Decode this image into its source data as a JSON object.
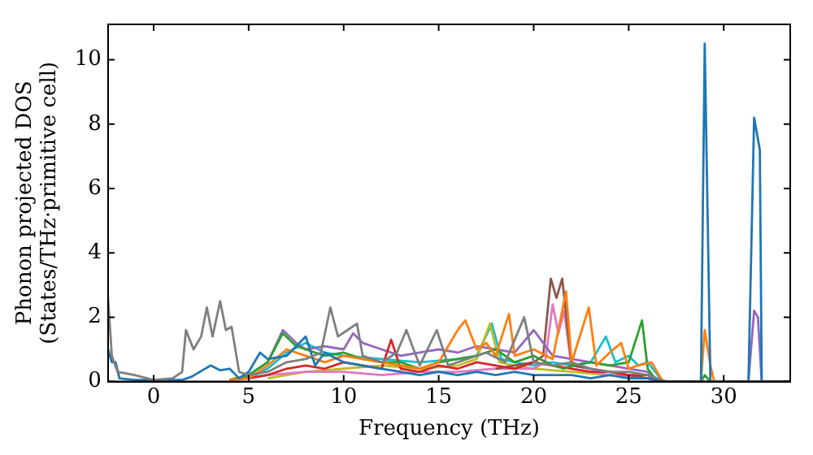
{
  "chart_data": {
    "type": "line",
    "xlabel": "Frequency (THz)",
    "ylabel": "Phonon projected DOS\n(States/THz·primitive cell)",
    "xlim": [
      -2.4,
      33.5
    ],
    "ylim": [
      0,
      11.1
    ],
    "xticks": [
      0,
      5,
      10,
      15,
      20,
      25,
      30
    ],
    "yticks": [
      0,
      2,
      4,
      6,
      8,
      10
    ],
    "grid": false,
    "legend": false,
    "marker": "none",
    "line_style": "solid",
    "series": [
      {
        "color": "#7f7f7f",
        "x": [
          -2.4,
          -2.2,
          -1.9,
          -1,
          0,
          1,
          1.5,
          1.7,
          2.1,
          2.5,
          2.8,
          3.1,
          3.5,
          3.8,
          4.1,
          4.5,
          5,
          6,
          7,
          8,
          8.8,
          9.3,
          9.7,
          10.2,
          10.7,
          11,
          12,
          12.8,
          13.3,
          14,
          14.9,
          15.5,
          16.5,
          17.5,
          18.5,
          19.5,
          20,
          21,
          22,
          23,
          24,
          25,
          26,
          26.5,
          27,
          33.5
        ],
        "values": [
          2.6,
          0.8,
          0.3,
          0.2,
          0.05,
          0.1,
          0.3,
          1.6,
          1.0,
          1.4,
          2.3,
          1.4,
          2.5,
          1.6,
          1.7,
          0.3,
          0.2,
          0.3,
          0.6,
          0.7,
          0.9,
          2.3,
          1.4,
          1.6,
          1.8,
          0.8,
          0.6,
          0.9,
          1.6,
          0.5,
          1.6,
          0.5,
          0.7,
          0.9,
          0.6,
          2.0,
          0.6,
          0.5,
          0.6,
          0.4,
          0.3,
          0.3,
          0.2,
          0.1,
          0,
          0
        ]
      },
      {
        "color": "#1f77b4",
        "x": [
          -2.4,
          -2.2,
          -2,
          -1.8,
          -1,
          0,
          1.5,
          2,
          3,
          3.5,
          4,
          4.5,
          5,
          5.6,
          6,
          7,
          8,
          8.5,
          9,
          10,
          11,
          12,
          13,
          14,
          15,
          16,
          17,
          18,
          19,
          20,
          21,
          22,
          23,
          24,
          25,
          26,
          26.5,
          27,
          28.8,
          29,
          29.3,
          31.3,
          31.6,
          31.9,
          32,
          33.5
        ],
        "values": [
          1.0,
          0.6,
          0.6,
          0.1,
          0.05,
          0.05,
          0.05,
          0.15,
          0.5,
          0.35,
          0.4,
          0.1,
          0.3,
          0.9,
          0.7,
          0.8,
          1.4,
          0.5,
          0.9,
          0.6,
          0.5,
          0.4,
          0.3,
          0.2,
          0.3,
          0.2,
          0.3,
          0.2,
          0.3,
          0.2,
          0.2,
          0.2,
          0.1,
          0.2,
          0.1,
          0.1,
          0.05,
          0,
          0,
          10.5,
          0,
          0,
          8.2,
          7.2,
          0,
          0
        ]
      },
      {
        "color": "#ff7f0e",
        "x": [
          4,
          5,
          6,
          7,
          8,
          9,
          10,
          11,
          12,
          13,
          14,
          15,
          16,
          16.4,
          17,
          17.5,
          18,
          18.7,
          19,
          20,
          21,
          21.7,
          22,
          22.9,
          23.3,
          24,
          24.6,
          25,
          25.5,
          26.2,
          26.8,
          28.8,
          29,
          29.3,
          29.5,
          33.5
        ],
        "values": [
          0.05,
          0.1,
          0.5,
          1.0,
          0.8,
          0.6,
          0.8,
          0.7,
          0.6,
          0.5,
          0.4,
          0.6,
          1.6,
          1.9,
          1.0,
          1.2,
          0.8,
          2.1,
          0.8,
          1.0,
          0.7,
          2.8,
          0.6,
          2.3,
          0.5,
          0.9,
          1.2,
          0.4,
          0.5,
          0.6,
          0,
          0,
          1.6,
          0.5,
          0,
          0
        ]
      },
      {
        "color": "#2ca02c",
        "x": [
          4,
          5,
          6,
          6.8,
          7.5,
          8,
          9,
          10,
          11,
          12,
          13,
          14,
          15,
          16,
          17,
          18,
          19,
          20,
          21,
          21.6,
          22,
          23,
          24,
          25,
          25.7,
          26,
          26.5,
          28.8,
          29,
          29.3
        ],
        "values": [
          0.05,
          0.2,
          0.6,
          1.5,
          1.1,
          1.0,
          0.8,
          0.9,
          0.7,
          0.6,
          0.6,
          0.4,
          0.6,
          0.7,
          0.8,
          1.0,
          0.6,
          0.8,
          0.5,
          0.4,
          0.5,
          0.6,
          0.5,
          0.6,
          1.9,
          0.4,
          0,
          0,
          0.2,
          0
        ]
      },
      {
        "color": "#d62728",
        "x": [
          4,
          5,
          6,
          7,
          8,
          9,
          10,
          11,
          12,
          12.5,
          13,
          14,
          15,
          16,
          17,
          18,
          19,
          20,
          21,
          22,
          23,
          24,
          25,
          26,
          26.5
        ],
        "values": [
          0.05,
          0.1,
          0.2,
          0.4,
          0.5,
          0.4,
          0.6,
          0.5,
          0.4,
          1.3,
          0.4,
          0.3,
          0.5,
          0.4,
          0.6,
          0.5,
          0.4,
          0.6,
          0.5,
          0.4,
          0.3,
          0.3,
          0.2,
          0.2,
          0
        ]
      },
      {
        "color": "#9467bd",
        "x": [
          4,
          5,
          6,
          6.8,
          7.5,
          8,
          9,
          10,
          10.5,
          11,
          12,
          13,
          14,
          15,
          16,
          17,
          18,
          19,
          20,
          21,
          22,
          23,
          24,
          25,
          26,
          26.5,
          31.3,
          31.6,
          31.8,
          32,
          33.5
        ],
        "values": [
          0.05,
          0.2,
          0.6,
          1.6,
          1.2,
          1.0,
          1.1,
          1.0,
          1.5,
          1.2,
          1.0,
          0.8,
          0.9,
          1.0,
          0.9,
          1.1,
          1.0,
          0.9,
          1.6,
          0.8,
          0.7,
          0.6,
          0.5,
          0.4,
          0.3,
          0,
          0,
          2.2,
          2.0,
          0,
          0
        ]
      },
      {
        "color": "#8c564b",
        "x": [
          18,
          19,
          20,
          20.5,
          20.9,
          21.2,
          21.5,
          22,
          23,
          24,
          25,
          26
        ],
        "values": [
          0.4,
          0.5,
          0.6,
          0.8,
          3.2,
          2.6,
          3.2,
          0.5,
          0.4,
          0.3,
          0.2,
          0.1
        ]
      },
      {
        "color": "#e377c2",
        "x": [
          4.6,
          6,
          8,
          10,
          12,
          14,
          16,
          18,
          20,
          20.6,
          21,
          21.3,
          21.6,
          22,
          24,
          26,
          26.5
        ],
        "values": [
          0.1,
          0.2,
          0.3,
          0.3,
          0.2,
          0.3,
          0.3,
          0.4,
          0.4,
          0.6,
          2.4,
          1.5,
          2.2,
          0.4,
          0.2,
          0.1,
          0
        ]
      },
      {
        "color": "#bcbd22",
        "x": [
          6,
          8,
          10,
          12,
          14,
          16,
          17,
          17.7,
          18.2,
          19,
          20,
          22,
          24,
          26,
          26.5
        ],
        "values": [
          0.1,
          0.3,
          0.4,
          0.5,
          0.4,
          0.5,
          0.7,
          1.8,
          0.6,
          0.5,
          0.4,
          0.3,
          0.2,
          0.1,
          0
        ]
      },
      {
        "color": "#17becf",
        "x": [
          5,
          6,
          7,
          8,
          9,
          10,
          12,
          14,
          16,
          17,
          17.8,
          18.3,
          19,
          20,
          21,
          22,
          23,
          23.8,
          24.3,
          25,
          25.5,
          26,
          26.8
        ],
        "values": [
          0.1,
          0.4,
          0.9,
          1.2,
          0.9,
          0.8,
          0.7,
          0.6,
          0.7,
          0.8,
          1.8,
          0.7,
          0.6,
          0.5,
          0.6,
          0.5,
          0.6,
          1.4,
          0.6,
          0.8,
          0.5,
          0.6,
          0
        ]
      }
    ]
  }
}
